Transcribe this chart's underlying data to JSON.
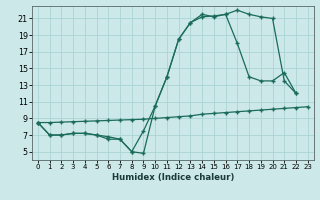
{
  "bg_color": "#cce8e8",
  "grid_color": "#aad4d4",
  "line_color": "#1a6b5a",
  "xlabel": "Humidex (Indice chaleur)",
  "xlim": [
    -0.5,
    23.5
  ],
  "ylim": [
    4.0,
    22.5
  ],
  "xticks": [
    0,
    1,
    2,
    3,
    4,
    5,
    6,
    7,
    8,
    9,
    10,
    11,
    12,
    13,
    14,
    15,
    16,
    17,
    18,
    19,
    20,
    21,
    22,
    23
  ],
  "yticks": [
    5,
    7,
    9,
    11,
    13,
    15,
    17,
    19,
    21
  ],
  "curve1_x": [
    0,
    1,
    2,
    3,
    4,
    5,
    6,
    7,
    8,
    9,
    10,
    11,
    12,
    13,
    14,
    15,
    16,
    17,
    18,
    19,
    20,
    21,
    22
  ],
  "curve1_y": [
    8.5,
    7.0,
    7.0,
    7.2,
    7.2,
    7.0,
    6.8,
    6.5,
    5.0,
    7.5,
    10.5,
    14.0,
    18.5,
    20.5,
    21.5,
    21.2,
    21.5,
    22.0,
    21.5,
    21.2,
    21.0,
    13.5,
    12.0
  ],
  "curve2_x": [
    0,
    1,
    2,
    3,
    4,
    5,
    6,
    7,
    8,
    9,
    10,
    11,
    12,
    13,
    14,
    15,
    16,
    17,
    18,
    19,
    20,
    21,
    22
  ],
  "curve2_y": [
    8.5,
    7.0,
    7.0,
    7.2,
    7.2,
    7.0,
    6.5,
    6.5,
    5.0,
    4.8,
    10.5,
    14.0,
    18.5,
    20.5,
    21.2,
    21.3,
    21.5,
    18.0,
    14.0,
    13.5,
    13.5,
    14.5,
    12.0
  ],
  "curve3_x": [
    0,
    1,
    2,
    3,
    4,
    5,
    6,
    7,
    8,
    9,
    10,
    11,
    12,
    13,
    14,
    15,
    16,
    17,
    18,
    19,
    20,
    21,
    22,
    23
  ],
  "curve3_y": [
    8.5,
    8.5,
    8.55,
    8.6,
    8.65,
    8.7,
    8.75,
    8.8,
    8.85,
    8.9,
    9.0,
    9.1,
    9.2,
    9.3,
    9.5,
    9.6,
    9.7,
    9.8,
    9.9,
    10.0,
    10.1,
    10.2,
    10.3,
    10.4
  ]
}
